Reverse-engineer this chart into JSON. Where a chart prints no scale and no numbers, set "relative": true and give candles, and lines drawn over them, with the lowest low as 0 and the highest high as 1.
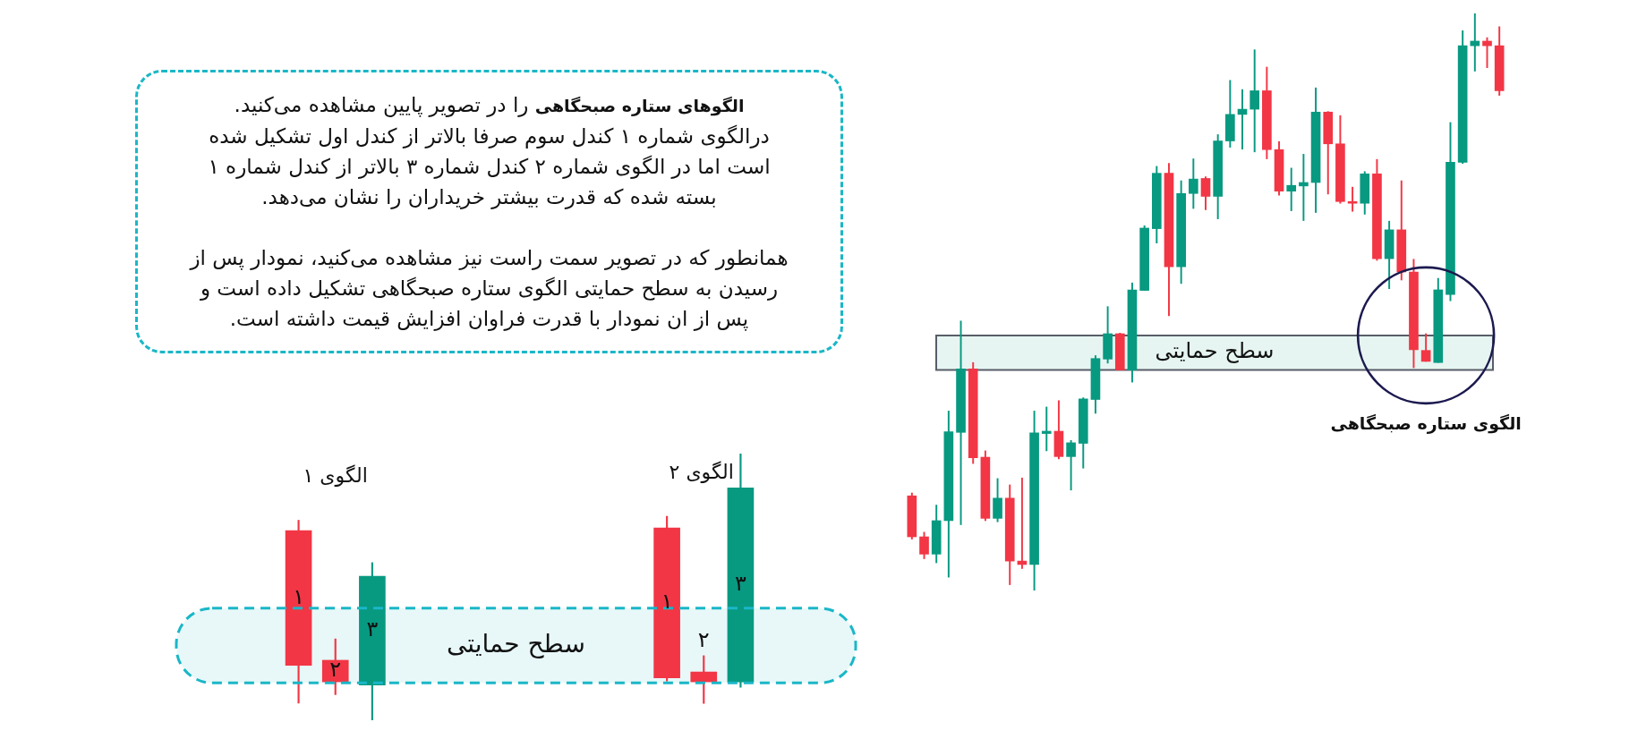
{
  "chart_data": [
    {
      "type": "other",
      "title": "الگوهای ستاره صبحگاهی",
      "annotations": [
        "را در تصویر پایین مشاهده می‌کنید.",
        "درالگوی شماره ۱ کندل سوم صرفا بالاتر از کندل اول تشکیل شده\nاست اما در الگوی شماره ۲ کندل شماره ۳ بالاتر از کندل شماره ۱\nبسته شده که قدرت بیشتر خریداران را نشان می‌دهد.",
        "همانطور که در تصویر سمت راست نیز مشاهده می‌کنید، نمودار پس از\nرسیدن به سطح حمایتی الگوی ستاره صبحگاهی تشکیل داده است و\nپس از ان نمودار با قدرت فراوان افزایش قیمت داشته است."
      ]
    },
    {
      "type": "candlestick",
      "relative": true,
      "categories": [
        "۱",
        "۲",
        "۳",
        null,
        null,
        null,
        null,
        null,
        null,
        null,
        "۱",
        "۲",
        "۳"
      ],
      "ohlc": [
        [
          0.711,
          0.75,
          0.064,
          0.206
        ],
        [
          0.225,
          0.305,
          0.096,
          0.144
        ],
        [
          0.132,
          0.591,
          0,
          0.54
        ],
        null,
        null,
        null,
        null,
        null,
        null,
        null,
        [
          0.721,
          0.765,
          0.147,
          0.159
        ],
        [
          0.181,
          0.242,
          0.063,
          0.144
        ],
        [
          0.144,
          1,
          0.124,
          0.871
        ]
      ],
      "colors": [
        "#f23645",
        "#f23645",
        "#089981",
        null,
        null,
        null,
        null,
        null,
        null,
        null,
        "#f23645",
        "#f23645",
        "#089981"
      ],
      "bands": [
        {
          "axis": "y",
          "from": 0.14,
          "to": 0.42,
          "label": "سطح حمایتی",
          "color": "#1ab7c7"
        }
      ],
      "annotations": [
        "الگوی ۱",
        "الگوی ۲"
      ]
    },
    {
      "type": "candlestick",
      "relative": true,
      "categories": [
        null,
        null,
        null,
        null,
        null,
        null,
        null,
        null,
        null,
        null,
        null,
        null,
        null,
        null,
        null,
        null,
        null,
        null,
        null,
        null,
        null,
        null,
        null,
        null,
        null,
        null,
        null,
        null,
        null,
        null,
        null,
        null,
        null,
        null,
        null,
        null,
        null,
        null,
        null,
        null,
        null,
        null,
        null,
        null,
        null,
        null,
        null,
        null,
        null
      ],
      "ohlc": [
        [
          0.164,
          0.169,
          0.089,
          0.093
        ],
        [
          0.093,
          0.101,
          0.055,
          0.063
        ],
        [
          0.063,
          0.148,
          0.048,
          0.121
        ],
        [
          0.121,
          0.311,
          0.023,
          0.275
        ],
        [
          0.274,
          0.467,
          0.114,
          0.384
        ],
        [
          0.384,
          0.395,
          0.22,
          0.23
        ],
        [
          0.231,
          0.242,
          0.121,
          0.125
        ],
        [
          0.125,
          0.194,
          0.119,
          0.16
        ],
        [
          0.16,
          0.183,
          0.01,
          0.051
        ],
        [
          0.051,
          0.195,
          0.038,
          0.045
        ],
        [
          0.045,
          0.311,
          0,
          0.273
        ],
        [
          0.272,
          0.318,
          0.242,
          0.276
        ],
        [
          0.276,
          0.329,
          0.228,
          0.232
        ],
        [
          0.232,
          0.26,
          0.174,
          0.256
        ],
        [
          0.255,
          0.334,
          0.212,
          0.332
        ],
        [
          0.331,
          0.407,
          0.307,
          0.402
        ],
        [
          0.401,
          0.492,
          0.394,
          0.445
        ],
        [
          0.445,
          0.446,
          0.382,
          0.382
        ],
        [
          0.382,
          0.533,
          0.361,
          0.521
        ],
        [
          0.52,
          0.632,
          0.52,
          0.628
        ],
        [
          0.627,
          0.735,
          0.602,
          0.723
        ],
        [
          0.723,
          0.74,
          0.476,
          0.561
        ],
        [
          0.561,
          0.71,
          0.532,
          0.688
        ],
        [
          0.688,
          0.748,
          0.662,
          0.713
        ],
        [
          0.714,
          0.717,
          0.66,
          0.683
        ],
        [
          0.683,
          0.79,
          0.644,
          0.779
        ],
        [
          0.779,
          0.884,
          0.768,
          0.825
        ],
        [
          0.825,
          0.868,
          0.765,
          0.834
        ],
        [
          0.834,
          0.937,
          0.76,
          0.866
        ],
        [
          0.866,
          0.907,
          0.748,
          0.764
        ],
        [
          0.764,
          0.778,
          0.685,
          0.692
        ],
        [
          0.692,
          0.732,
          0.658,
          0.702
        ],
        [
          0.701,
          0.756,
          0.641,
          0.707
        ],
        [
          0.707,
          0.871,
          0.655,
          0.829
        ],
        [
          0.829,
          0.83,
          0.687,
          0.774
        ],
        [
          0.774,
          0.823,
          0.671,
          0.674
        ],
        [
          0.674,
          0.699,
          0.657,
          0.671
        ],
        [
          0.671,
          0.726,
          0.652,
          0.722
        ],
        [
          0.722,
          0.747,
          0.572,
          0.575
        ],
        [
          0.575,
          0.64,
          0.523,
          0.625
        ],
        [
          0.625,
          0.71,
          0.538,
          0.552
        ],
        [
          0.552,
          0.574,
          0.386,
          0.417
        ],
        [
          0.416,
          0.445,
          0.397,
          0.397
        ],
        [
          0.395,
          0.541,
          0.395,
          0.521
        ],
        [
          0.513,
          0.811,
          0.502,
          0.742
        ],
        [
          0.742,
          0.97,
          0.74,
          0.944
        ],
        [
          0.944,
          1,
          0.9,
          0.952
        ],
        [
          0.952,
          0.958,
          0.906,
          0.944
        ],
        [
          0.944,
          0.977,
          0.858,
          0.866
        ]
      ],
      "colors": [
        "#f23645",
        "#f23645",
        "#089981",
        "#089981",
        "#089981",
        "#f23645",
        "#f23645",
        "#089981",
        "#f23645",
        "#f23645",
        "#089981",
        "#089981",
        "#f23645",
        "#089981",
        "#089981",
        "#089981",
        "#089981",
        "#f23645",
        "#089981",
        "#089981",
        "#089981",
        "#f23645",
        "#089981",
        "#089981",
        "#f23645",
        "#089981",
        "#089981",
        "#089981",
        "#089981",
        "#f23645",
        "#f23645",
        "#089981",
        "#089981",
        "#089981",
        "#f23645",
        "#f23645",
        "#f23645",
        "#089981",
        "#f23645",
        "#089981",
        "#f23645",
        "#f23645",
        "#f23645",
        "#089981",
        "#089981",
        "#089981",
        "#089981",
        "#f23645",
        "#f23645"
      ],
      "bands": [
        {
          "axis": "y",
          "from": 0.382,
          "to": 0.442,
          "label": "سطح حمایتی",
          "color": "#e6f5f1"
        }
      ],
      "annotations": [
        "الگوی ستاره صبحگاهی"
      ]
    }
  ]
}
